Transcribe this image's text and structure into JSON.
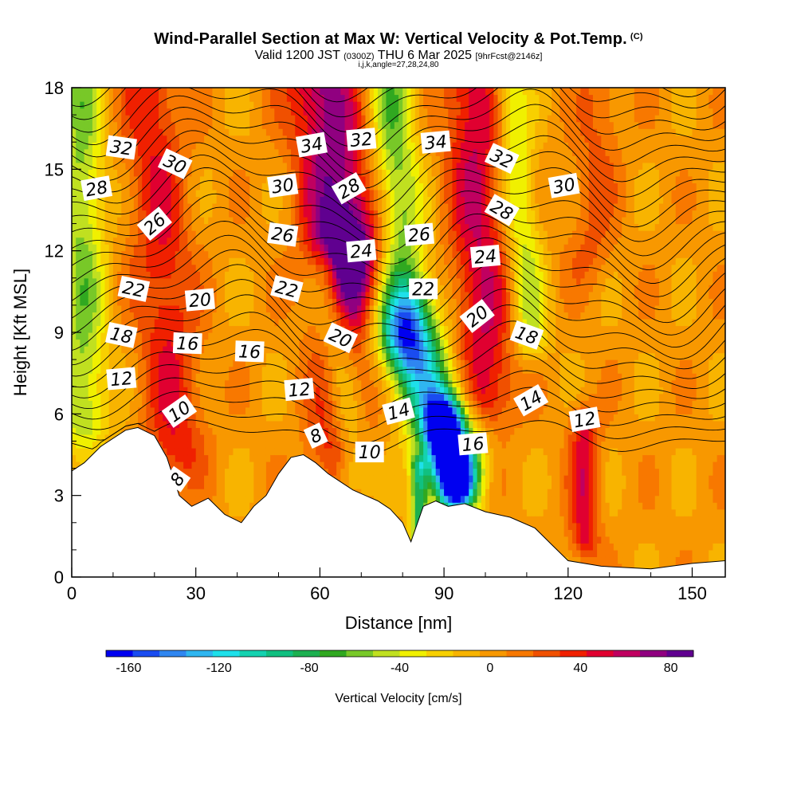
{
  "chart_data": {
    "type": "heatmap",
    "title": "Wind-Parallel Section at Max W: Vertical Velocity & Pot.Temp.",
    "title_mark": "(C)",
    "subtitle_parts": [
      "Valid 1200 JST ",
      "(0300Z)",
      " THU 6 Mar 2025 ",
      "[9hrFcst@2146z]"
    ],
    "subtitle2": "i,j,k,angle=27,28,24,80",
    "xlabel": "Distance [nm]",
    "ylabel": "Height [Kft MSL]",
    "xlim": [
      0,
      158
    ],
    "ylim": [
      0,
      18
    ],
    "x_ticks": [
      "0",
      "30",
      "60",
      "90",
      "120",
      "150"
    ],
    "y_ticks": [
      "0",
      "3",
      "6",
      "9",
      "12",
      "15",
      "18"
    ],
    "colorbar": {
      "label": "Vertical Velocity [cm/s]",
      "ticks": [
        "-160",
        "-120",
        "-80",
        "-40",
        "0",
        "40",
        "80"
      ],
      "range": [
        -170,
        90
      ],
      "colors": [
        "#0000f0",
        "#1a4cf0",
        "#2f86f0",
        "#2fb6f0",
        "#1ee0ea",
        "#14d2b0",
        "#10c080",
        "#1cb050",
        "#30a820",
        "#78c828",
        "#c0e020",
        "#f0f000",
        "#f8d000",
        "#f8b400",
        "#f89800",
        "#f87800",
        "#f05000",
        "#f02000",
        "#e00030",
        "#c00060",
        "#900080",
        "#600090"
      ]
    },
    "terrain": [
      {
        "x": 0,
        "z": 3.9
      },
      {
        "x": 3,
        "z": 4.2
      },
      {
        "x": 7,
        "z": 4.8
      },
      {
        "x": 10,
        "z": 5.1
      },
      {
        "x": 13,
        "z": 5.4
      },
      {
        "x": 16,
        "z": 5.5
      },
      {
        "x": 20,
        "z": 5.2
      },
      {
        "x": 23,
        "z": 4.4
      },
      {
        "x": 26,
        "z": 3.0
      },
      {
        "x": 29,
        "z": 2.6
      },
      {
        "x": 33,
        "z": 2.9
      },
      {
        "x": 37,
        "z": 2.3
      },
      {
        "x": 41,
        "z": 2.0
      },
      {
        "x": 44,
        "z": 2.6
      },
      {
        "x": 47,
        "z": 3.0
      },
      {
        "x": 50,
        "z": 3.8
      },
      {
        "x": 53,
        "z": 4.4
      },
      {
        "x": 56,
        "z": 4.5
      },
      {
        "x": 59,
        "z": 4.2
      },
      {
        "x": 62,
        "z": 3.8
      },
      {
        "x": 65,
        "z": 3.5
      },
      {
        "x": 68,
        "z": 3.2
      },
      {
        "x": 71,
        "z": 3.0
      },
      {
        "x": 74,
        "z": 2.8
      },
      {
        "x": 77,
        "z": 2.5
      },
      {
        "x": 80,
        "z": 2.0
      },
      {
        "x": 82,
        "z": 1.3
      },
      {
        "x": 85,
        "z": 2.6
      },
      {
        "x": 88,
        "z": 2.8
      },
      {
        "x": 91,
        "z": 2.6
      },
      {
        "x": 95,
        "z": 2.7
      },
      {
        "x": 100,
        "z": 2.4
      },
      {
        "x": 106,
        "z": 2.2
      },
      {
        "x": 112,
        "z": 1.8
      },
      {
        "x": 116,
        "z": 1.2
      },
      {
        "x": 120,
        "z": 0.6
      },
      {
        "x": 128,
        "z": 0.4
      },
      {
        "x": 140,
        "z": 0.3
      },
      {
        "x": 150,
        "z": 0.5
      },
      {
        "x": 158,
        "z": 0.6
      }
    ],
    "vv_features": [
      {
        "x0": 2,
        "z0": 18,
        "x1": 3,
        "z1": 6,
        "w": 4,
        "v": -55
      },
      {
        "x0": 19,
        "z0": 18,
        "x1": 25,
        "z1": 5,
        "w": 5,
        "v": 42
      },
      {
        "x0": 61,
        "z0": 18,
        "x1": 66,
        "z1": 12,
        "w": 6,
        "v": 75
      },
      {
        "x0": 66,
        "z0": 12,
        "x1": 65,
        "z1": 5,
        "w": 5,
        "v": 55
      },
      {
        "x0": 62,
        "z0": 11,
        "x1": 68,
        "z1": 4,
        "w": 3,
        "v": -55
      },
      {
        "x0": 77,
        "z0": 18,
        "x1": 81,
        "z1": 9,
        "w": 4,
        "v": -60
      },
      {
        "x0": 81,
        "z0": 9,
        "x1": 92,
        "z1": 4.5,
        "w": 5,
        "v": -110
      },
      {
        "x0": 90,
        "z0": 5.5,
        "x1": 93,
        "z1": 3.5,
        "w": 3,
        "v": -165
      },
      {
        "x0": 84,
        "z0": 4,
        "x1": 84,
        "z1": 1.4,
        "w": 1.5,
        "v": -80
      },
      {
        "x0": 97,
        "z0": 18,
        "x1": 100,
        "z1": 7,
        "w": 5,
        "v": 55
      },
      {
        "x0": 106,
        "z0": 18,
        "x1": 111,
        "z1": 9,
        "w": 3,
        "v": -45
      },
      {
        "x0": 124,
        "z0": 5.5,
        "x1": 124,
        "z1": 1.5,
        "w": 2.5,
        "v": 48
      },
      {
        "x0": 128,
        "z0": 18,
        "x1": 125,
        "z1": 12,
        "w": 4,
        "v": 22
      }
    ],
    "theta_levels": [
      8,
      10,
      12,
      14,
      16,
      18,
      20,
      22,
      24,
      26,
      28,
      30,
      32,
      34
    ],
    "contour_labels": [
      {
        "text": "32",
        "x": 12,
        "z": 15.8,
        "angle": 8
      },
      {
        "text": "30",
        "x": 25,
        "z": 15.2,
        "angle": 25
      },
      {
        "text": "28",
        "x": 6,
        "z": 14.3,
        "angle": -10
      },
      {
        "text": "26",
        "x": 20,
        "z": 13.0,
        "angle": -40
      },
      {
        "text": "22",
        "x": 15,
        "z": 10.6,
        "angle": 12
      },
      {
        "text": "20",
        "x": 31,
        "z": 10.2,
        "angle": -5
      },
      {
        "text": "18",
        "x": 12,
        "z": 8.9,
        "angle": 12
      },
      {
        "text": "16",
        "x": 28,
        "z": 8.6,
        "angle": 2
      },
      {
        "text": "16",
        "x": 43,
        "z": 8.3,
        "angle": 2
      },
      {
        "text": "12",
        "x": 12,
        "z": 7.3,
        "angle": -5
      },
      {
        "text": "10",
        "x": 26,
        "z": 6.1,
        "angle": -35
      },
      {
        "text": "8",
        "x": 25.5,
        "z": 3.6,
        "angle": -55
      },
      {
        "text": "34",
        "x": 58,
        "z": 15.9,
        "angle": -10
      },
      {
        "text": "32",
        "x": 70,
        "z": 16.1,
        "angle": -5
      },
      {
        "text": "30",
        "x": 51,
        "z": 14.4,
        "angle": -8
      },
      {
        "text": "28",
        "x": 67,
        "z": 14.3,
        "angle": -30
      },
      {
        "text": "26",
        "x": 51,
        "z": 12.6,
        "angle": 8
      },
      {
        "text": "24",
        "x": 70,
        "z": 12.0,
        "angle": -5
      },
      {
        "text": "22",
        "x": 52,
        "z": 10.6,
        "angle": 15
      },
      {
        "text": "20",
        "x": 65,
        "z": 8.8,
        "angle": 25
      },
      {
        "text": "12",
        "x": 55,
        "z": 6.9,
        "angle": -5
      },
      {
        "text": "8",
        "x": 59,
        "z": 5.2,
        "angle": -25
      },
      {
        "text": "14",
        "x": 79,
        "z": 6.1,
        "angle": -15
      },
      {
        "text": "10",
        "x": 72,
        "z": 4.6,
        "angle": 0
      },
      {
        "text": "34",
        "x": 88,
        "z": 16.0,
        "angle": -5
      },
      {
        "text": "26",
        "x": 84,
        "z": 12.6,
        "angle": -5
      },
      {
        "text": "22",
        "x": 85,
        "z": 10.6,
        "angle": 0
      },
      {
        "text": "32",
        "x": 104,
        "z": 15.4,
        "angle": 25
      },
      {
        "text": "28",
        "x": 104,
        "z": 13.5,
        "angle": 30
      },
      {
        "text": "24",
        "x": 100,
        "z": 11.8,
        "angle": -5
      },
      {
        "text": "20",
        "x": 98,
        "z": 9.6,
        "angle": -38
      },
      {
        "text": "18",
        "x": 110,
        "z": 8.9,
        "angle": 20
      },
      {
        "text": "14",
        "x": 111,
        "z": 6.5,
        "angle": -30
      },
      {
        "text": "16",
        "x": 97,
        "z": 4.9,
        "angle": -5
      },
      {
        "text": "12",
        "x": 124,
        "z": 5.8,
        "angle": -10
      },
      {
        "text": "30",
        "x": 119,
        "z": 14.4,
        "angle": -10
      }
    ]
  }
}
